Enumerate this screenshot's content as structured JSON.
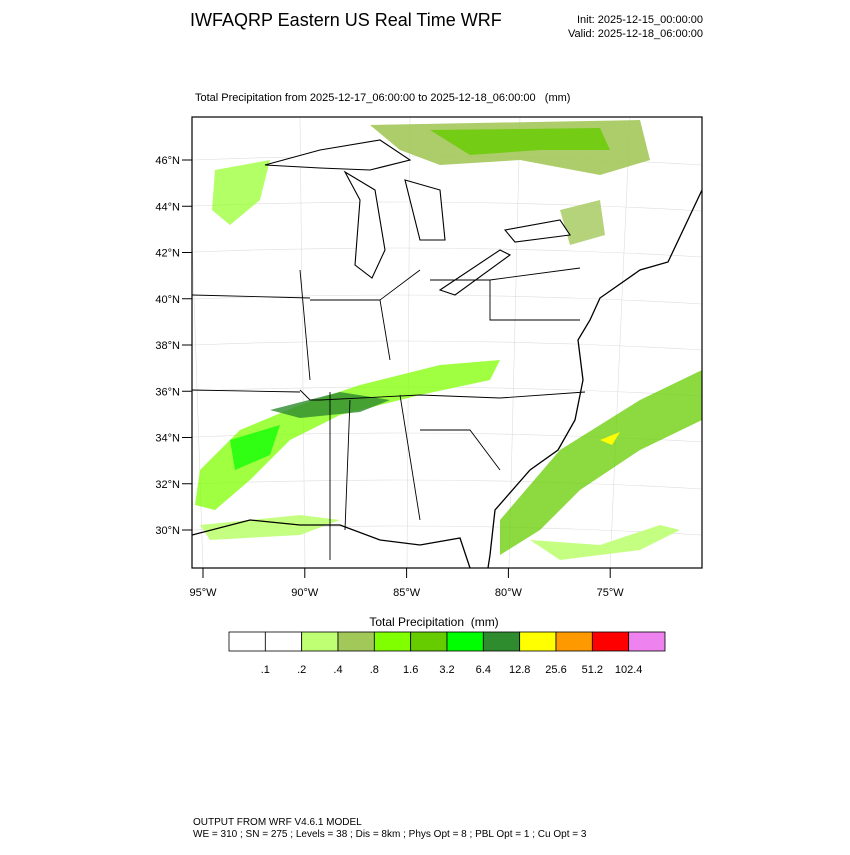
{
  "header": {
    "title": "IWFAQRP Eastern US Real Time WRF",
    "init": "Init: 2025-12-15_00:00:00",
    "valid": "Valid: 2025-12-18_06:00:00"
  },
  "map": {
    "subtitle": "Total Precipitation from 2025-12-17_06:00:00 to 2025-12-18_06:00:00   (mm)",
    "lat_labels": [
      "46°N",
      "44°N",
      "42°N",
      "40°N",
      "38°N",
      "36°N",
      "34°N",
      "32°N",
      "30°N"
    ],
    "lon_labels": [
      "95°W",
      "90°W",
      "85°W",
      "80°W",
      "75°W"
    ]
  },
  "colorbar": {
    "title": "Total Precipitation  (mm)",
    "labels": [
      ".1",
      ".2",
      ".4",
      ".8",
      "1.6",
      "3.2",
      "6.4",
      "12.8",
      "25.6",
      "51.2",
      "102.4"
    ],
    "colors": [
      "#ffffff",
      "#ffffff",
      "#bfff73",
      "#a3c85a",
      "#80ff00",
      "#66cc00",
      "#00ff00",
      "#2e8b2e",
      "#ffff00",
      "#ff9900",
      "#ff0000",
      "#ee82ee"
    ]
  },
  "footer": {
    "lines": [
      "OUTPUT FROM WRF V4.6.1 MODEL",
      "WE = 310 ; SN = 275 ; Levels = 38 ; Dis = 8km ; Phys Opt = 8 ; PBL Opt = 1 ; Cu Opt = 3"
    ]
  }
}
